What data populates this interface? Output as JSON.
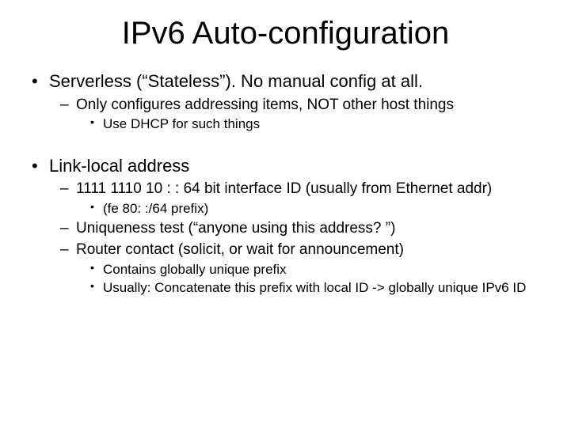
{
  "title": "IPv6 Auto-configuration",
  "bullets": [
    {
      "text": "Serverless (“Stateless”).  No manual config at all.",
      "children": [
        {
          "text": "Only configures addressing items, NOT other host things",
          "children": [
            {
              "text": "Use DHCP for such things"
            }
          ]
        }
      ]
    },
    {
      "text": "Link-local address",
      "children": [
        {
          "text": "1111 1110 10  : : 64 bit interface ID  (usually from Ethernet addr)",
          "children": [
            {
              "text": "(fe 80: :/64 prefix)"
            }
          ]
        },
        {
          "text": "Uniqueness test (“anyone using this address? ”)"
        },
        {
          "text": "Router contact (solicit, or wait for announcement)",
          "children": [
            {
              "text": "Contains globally unique prefix"
            },
            {
              "text": "Usually:  Concatenate this prefix with local ID -> globally unique IPv6 ID"
            }
          ]
        }
      ]
    }
  ],
  "style": {
    "background_color": "#ffffff",
    "text_color": "#000000",
    "font_family": "Comic Sans MS",
    "title_fontsize": 40,
    "lvl1_fontsize": 22,
    "lvl2_fontsize": 19,
    "lvl3_fontsize": 17
  }
}
